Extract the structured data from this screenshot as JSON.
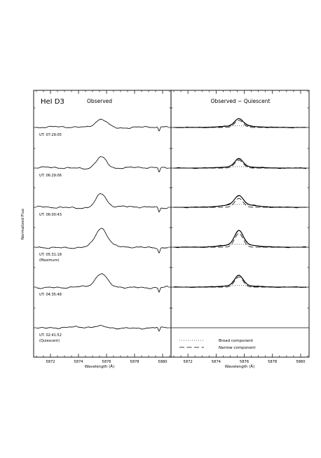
{
  "chart_data": [
    {
      "type": "line",
      "panel": "left",
      "title": "Observed",
      "corner_label": "HeI D3",
      "xlabel": "Wavelength (Å)",
      "ylabel": "Normalized Flux",
      "xlim": [
        5870.8,
        5880.6
      ],
      "x_ticks": [
        5872,
        5874,
        5876,
        5878,
        5880
      ],
      "line_center": 5875.62,
      "series": [
        {
          "label": "UT: 07:29:05",
          "peak": 0.42,
          "width": 0.42
        },
        {
          "label": "UT: 06:29:06",
          "peak": 0.55,
          "width": 0.38
        },
        {
          "label": "UT: 06:00:43",
          "peak": 0.66,
          "width": 0.36
        },
        {
          "label": "UT: 05:31:18",
          "sublabel": "(Maximum)",
          "peak": 0.88,
          "width": 0.42
        },
        {
          "label": "UT: 04:35:48",
          "peak": 0.62,
          "width": 0.4
        },
        {
          "label": "UT: 02:41:52",
          "sublabel": "(Quiescent)",
          "peak": 0.06,
          "width": 0.4
        }
      ]
    },
    {
      "type": "line",
      "panel": "right",
      "title": "Observed − Quiescent",
      "xlabel": "Wavelength (Å)",
      "xlim": [
        5870.8,
        5880.6
      ],
      "x_ticks": [
        5872,
        5874,
        5876,
        5878,
        5880
      ],
      "legend": [
        {
          "name": "Broad component",
          "style": "dotted"
        },
        {
          "name": "Narrow component",
          "style": "dashed"
        }
      ],
      "series": [
        {
          "peak": 0.42,
          "broad": 0.08,
          "narrow": 0.34
        },
        {
          "peak": 0.44,
          "broad": 0.07,
          "narrow": 0.37
        },
        {
          "peak": 0.56,
          "broad": 0.14,
          "narrow": 0.42
        },
        {
          "peak": 0.8,
          "broad": 0.14,
          "narrow": 0.66
        },
        {
          "peak": 0.56,
          "broad": 0.08,
          "narrow": 0.48
        },
        {
          "peak": 0.0,
          "broad": 0.0,
          "narrow": 0.0
        }
      ]
    }
  ]
}
